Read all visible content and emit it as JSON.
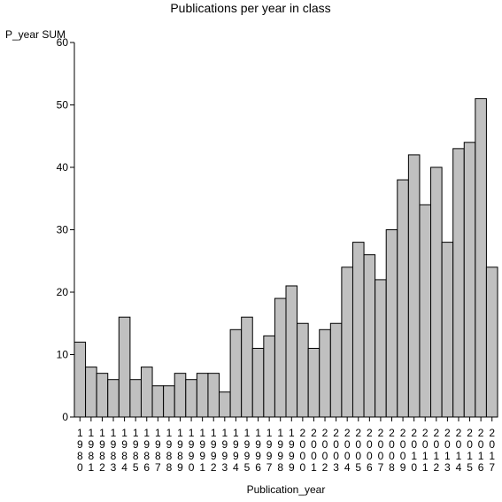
{
  "chart_data": {
    "type": "bar",
    "title": "Publications per year in class",
    "xlabel": "Publication_year",
    "ylabel": "P_year SUM",
    "ylim": [
      0,
      60
    ],
    "yticks": [
      0,
      10,
      20,
      30,
      40,
      50,
      60
    ],
    "grid": false,
    "legend": "none",
    "colors": {
      "bar_fill": "#c0c0c0",
      "bar_stroke": "#000000",
      "axis": "#000000",
      "background": "#ffffff"
    },
    "categories": [
      "1980",
      "1981",
      "1982",
      "1983",
      "1984",
      "1985",
      "1986",
      "1987",
      "1988",
      "1989",
      "1990",
      "1991",
      "1992",
      "1993",
      "1994",
      "1995",
      "1996",
      "1997",
      "1998",
      "1999",
      "2000",
      "2001",
      "2002",
      "2003",
      "2004",
      "2005",
      "2006",
      "2007",
      "2008",
      "2009",
      "2010",
      "2011",
      "2012",
      "2013",
      "2014",
      "2015",
      "2016",
      "2017"
    ],
    "values": [
      12,
      8,
      7,
      6,
      16,
      6,
      8,
      5,
      5,
      7,
      6,
      7,
      7,
      4,
      14,
      16,
      11,
      13,
      19,
      21,
      15,
      11,
      14,
      15,
      24,
      28,
      26,
      22,
      30,
      38,
      42,
      34,
      40,
      28,
      43,
      44,
      51,
      24
    ]
  }
}
